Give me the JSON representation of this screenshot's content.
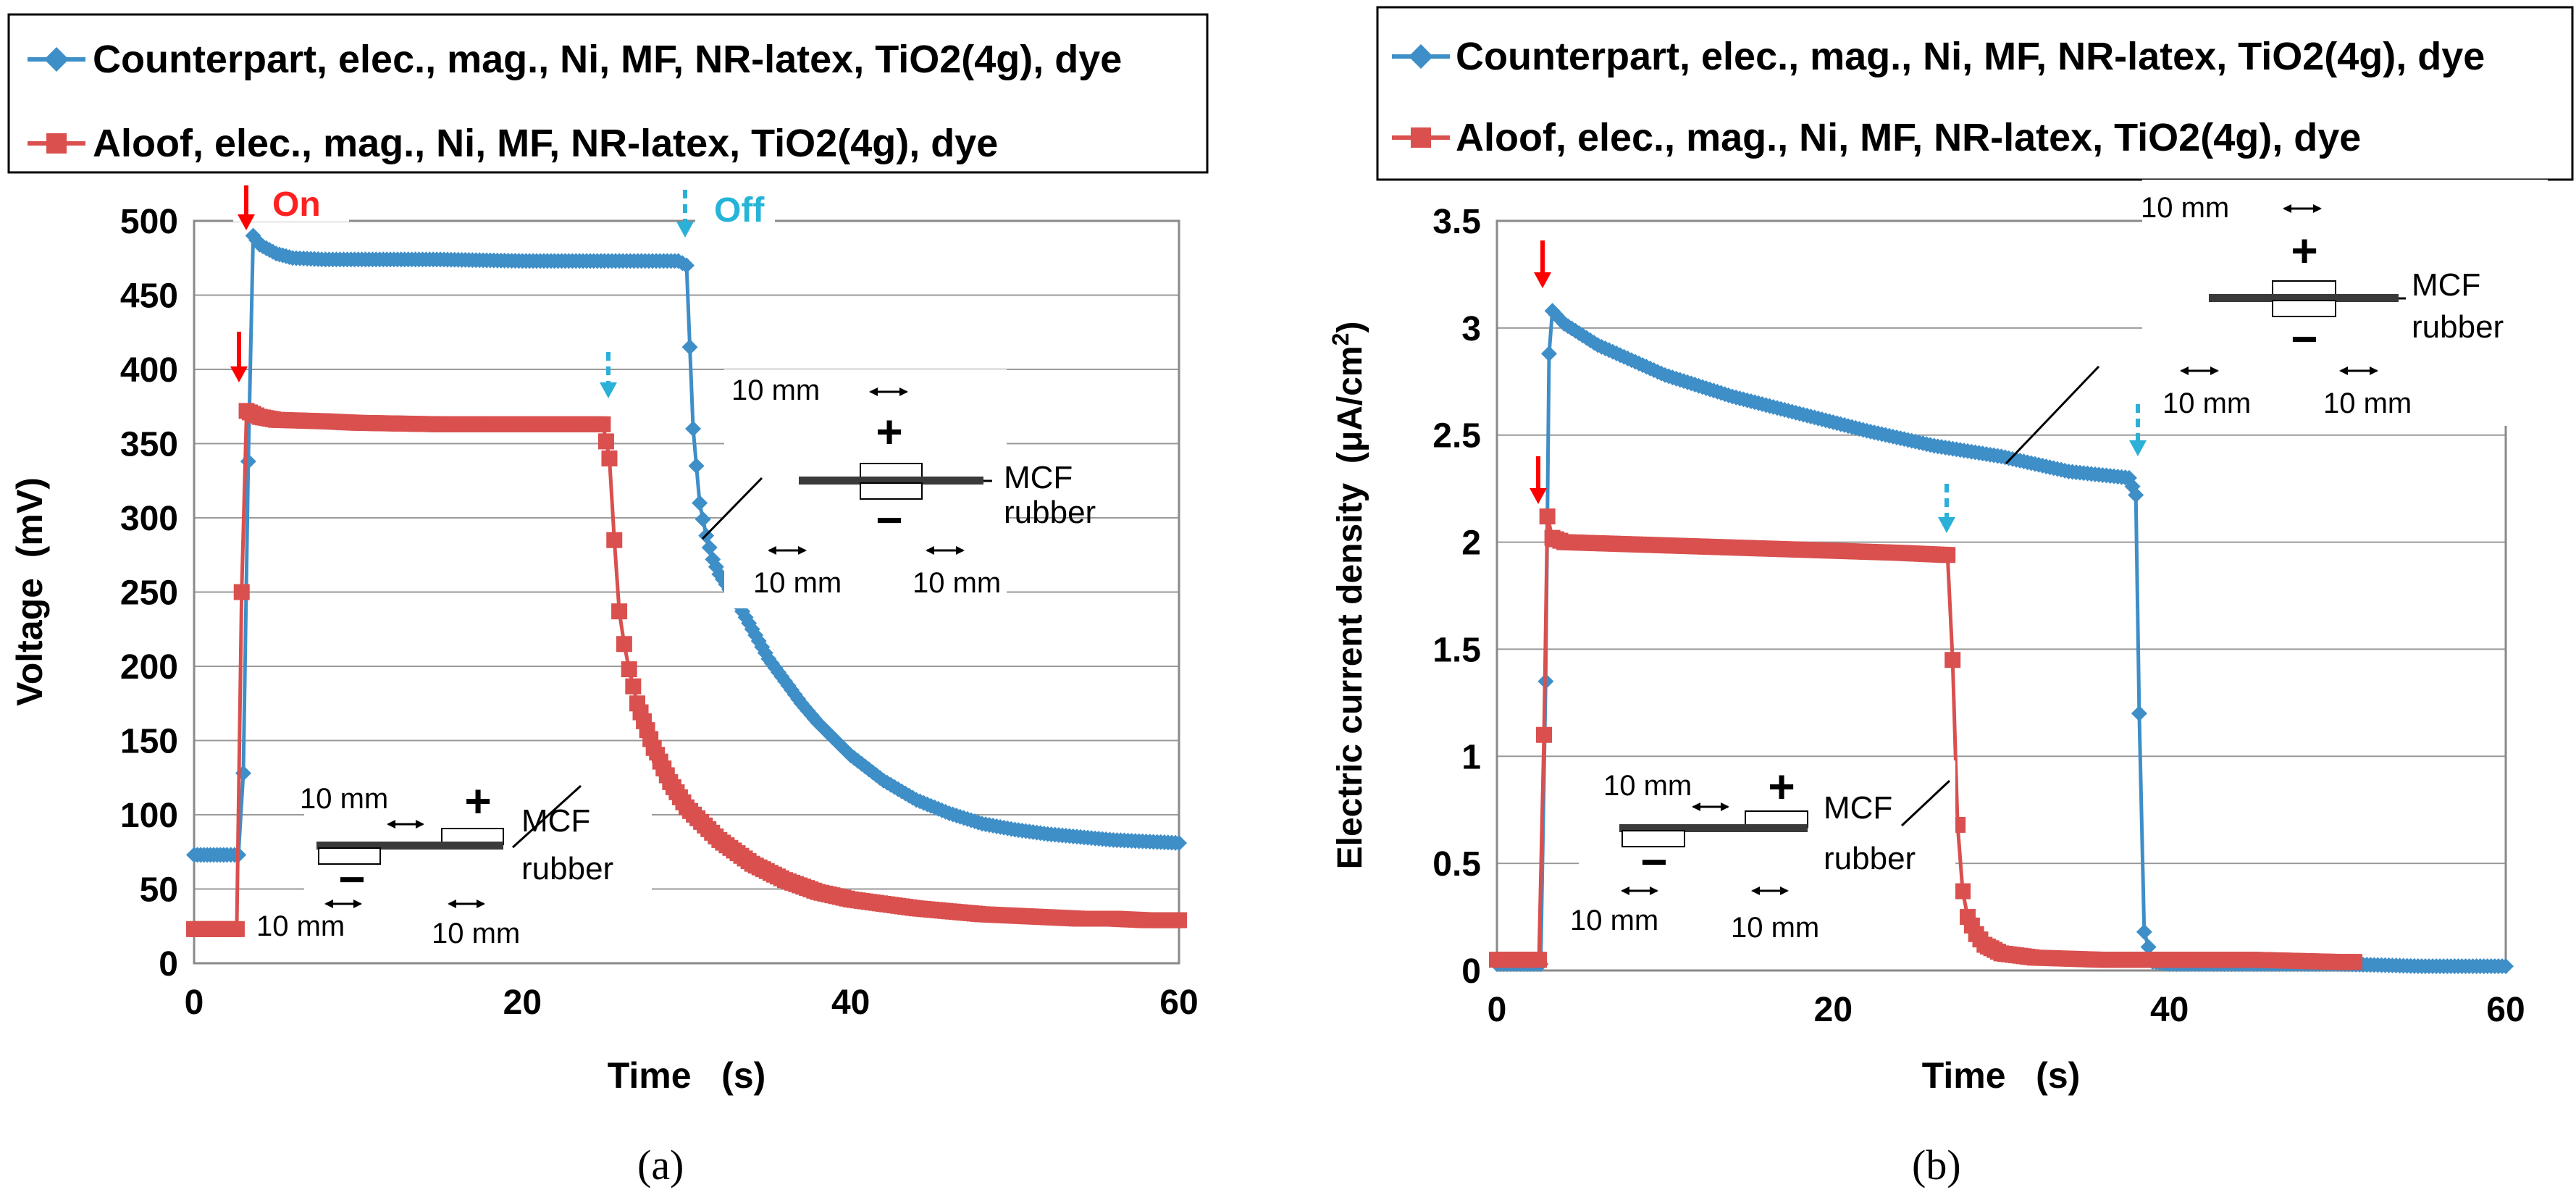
{
  "chart_data": [
    {
      "type": "line",
      "panel_label": "(a)",
      "xlabel": "Time   (s)",
      "ylabel": "Voltage  (mV)",
      "xlim": [
        0,
        60
      ],
      "ylim": [
        0,
        500
      ],
      "xticks": [
        0,
        20,
        40,
        60
      ],
      "yticks": [
        0,
        50,
        100,
        150,
        200,
        250,
        300,
        350,
        400,
        450,
        500
      ],
      "grid": "horizontal",
      "legend_position": "top",
      "series": [
        {
          "name": "Counterpart, elec., mag., Ni, MF, NR-latex, TiO2(4g), dye",
          "color": "#3e8ec8",
          "marker": "diamond",
          "x": [
            0,
            1,
            2,
            2.7,
            3.0,
            3.3,
            3.6,
            4,
            5,
            6,
            8,
            10,
            15,
            20,
            25,
            29.5,
            30.0,
            30.4,
            30.8,
            31.2,
            31.6,
            32,
            33,
            34,
            35,
            36,
            37,
            38,
            40,
            42,
            44,
            46,
            48,
            50,
            52,
            54,
            56,
            58,
            60
          ],
          "y": [
            73,
            73,
            73,
            73,
            128,
            338,
            490,
            484,
            478,
            475,
            474,
            474,
            474,
            473,
            473,
            473,
            470,
            360,
            310,
            288,
            272,
            262,
            245,
            225,
            205,
            190,
            175,
            162,
            140,
            123,
            110,
            101,
            94,
            90,
            87,
            85,
            83,
            82,
            81
          ]
        },
        {
          "name": "Aloof, elec., mag., Ni, MF, NR-latex, TiO2(4g), dye",
          "color": "#d9504e",
          "marker": "square",
          "x": [
            0,
            1,
            2,
            2.6,
            2.9,
            3.2,
            4,
            5,
            8,
            10,
            15,
            20,
            24.9,
            25.3,
            25.6,
            25.9,
            26.2,
            26.5,
            27,
            28,
            29,
            30,
            32,
            34,
            36,
            38,
            40,
            42,
            44,
            46,
            48,
            50,
            52,
            54,
            56,
            58,
            60
          ],
          "y": [
            23,
            23,
            23,
            23,
            250,
            372,
            368,
            366,
            365,
            364,
            363,
            363,
            363,
            340,
            285,
            237,
            215,
            198,
            175,
            145,
            122,
            105,
            83,
            67,
            56,
            48,
            43,
            40,
            37,
            35,
            33,
            32,
            31,
            30,
            30,
            29,
            29
          ]
        }
      ],
      "annotations": {
        "on_label": "On",
        "off_label": "Off",
        "inset_upper": {
          "dim_top": "10 mm",
          "dim_left": "10 mm",
          "dim_right": "10 mm",
          "plus": "+",
          "minus": "−",
          "label_line1": "MCF",
          "label_line2": "rubber"
        },
        "inset_lower": {
          "dim_top": "10 mm",
          "dim_left": "10 mm",
          "dim_right": "10 mm",
          "plus": "+",
          "minus": "−",
          "label_line1": "MCF",
          "label_line2": "rubber"
        }
      }
    },
    {
      "type": "line",
      "panel_label": "(b)",
      "xlabel": "Time   (s)",
      "ylabel": "Electric current density  (μA/cm",
      "ylabel_sup": "2",
      "ylabel_end": ")",
      "xlim": [
        0,
        60
      ],
      "ylim": [
        0,
        3.5
      ],
      "xticks": [
        0,
        20,
        40,
        60
      ],
      "yticks": [
        0,
        0.5,
        1,
        1.5,
        2,
        2.5,
        3,
        3.5
      ],
      "grid": "horizontal",
      "legend_position": "top",
      "series": [
        {
          "name": "Counterpart, elec., mag., Ni, MF, NR-latex, TiO2(4g), dye",
          "color": "#3e8ec8",
          "marker": "diamond",
          "x": [
            0,
            1,
            2,
            2.6,
            2.9,
            3.1,
            3.3,
            4,
            6,
            8,
            10,
            14,
            18,
            22,
            26,
            30,
            34,
            37.6,
            38.0,
            38.2,
            38.5,
            39,
            40,
            45,
            50,
            55,
            60
          ],
          "y": [
            0.03,
            0.03,
            0.03,
            0.03,
            1.35,
            2.88,
            3.08,
            3.02,
            2.92,
            2.85,
            2.78,
            2.68,
            2.6,
            2.52,
            2.45,
            2.4,
            2.33,
            2.3,
            2.22,
            1.2,
            0.18,
            0.04,
            0.03,
            0.03,
            0.03,
            0.02,
            0.02
          ]
        },
        {
          "name": "Aloof, elec., mag., Ni, MF, NR-latex, TiO2(4g), dye",
          "color": "#d9504e",
          "marker": "square",
          "x": [
            0,
            1,
            2,
            2.5,
            2.8,
            3.0,
            3.3,
            4,
            8,
            12,
            16,
            20,
            24,
            26.8,
            27.1,
            27.4,
            27.7,
            28.0,
            28.5,
            29,
            30,
            32,
            36,
            40,
            45,
            50,
            51
          ],
          "y": [
            0.05,
            0.05,
            0.05,
            0.05,
            1.1,
            2.12,
            2.02,
            2.0,
            1.99,
            1.98,
            1.97,
            1.96,
            1.95,
            1.94,
            1.45,
            0.68,
            0.37,
            0.25,
            0.17,
            0.12,
            0.08,
            0.06,
            0.05,
            0.05,
            0.05,
            0.04,
            0.04
          ]
        }
      ],
      "annotations": {
        "inset_upper": {
          "dim_top": "10 mm",
          "dim_left": "10 mm",
          "dim_right": "10 mm",
          "plus": "+",
          "minus": "−",
          "label_line1": "MCF",
          "label_line2": "rubber"
        },
        "inset_lower": {
          "dim_top": "10 mm",
          "dim_left": "10 mm",
          "dim_right": "10 mm",
          "plus": "+",
          "minus": "−",
          "label_line1": "MCF",
          "label_line2": "rubber"
        }
      }
    }
  ]
}
